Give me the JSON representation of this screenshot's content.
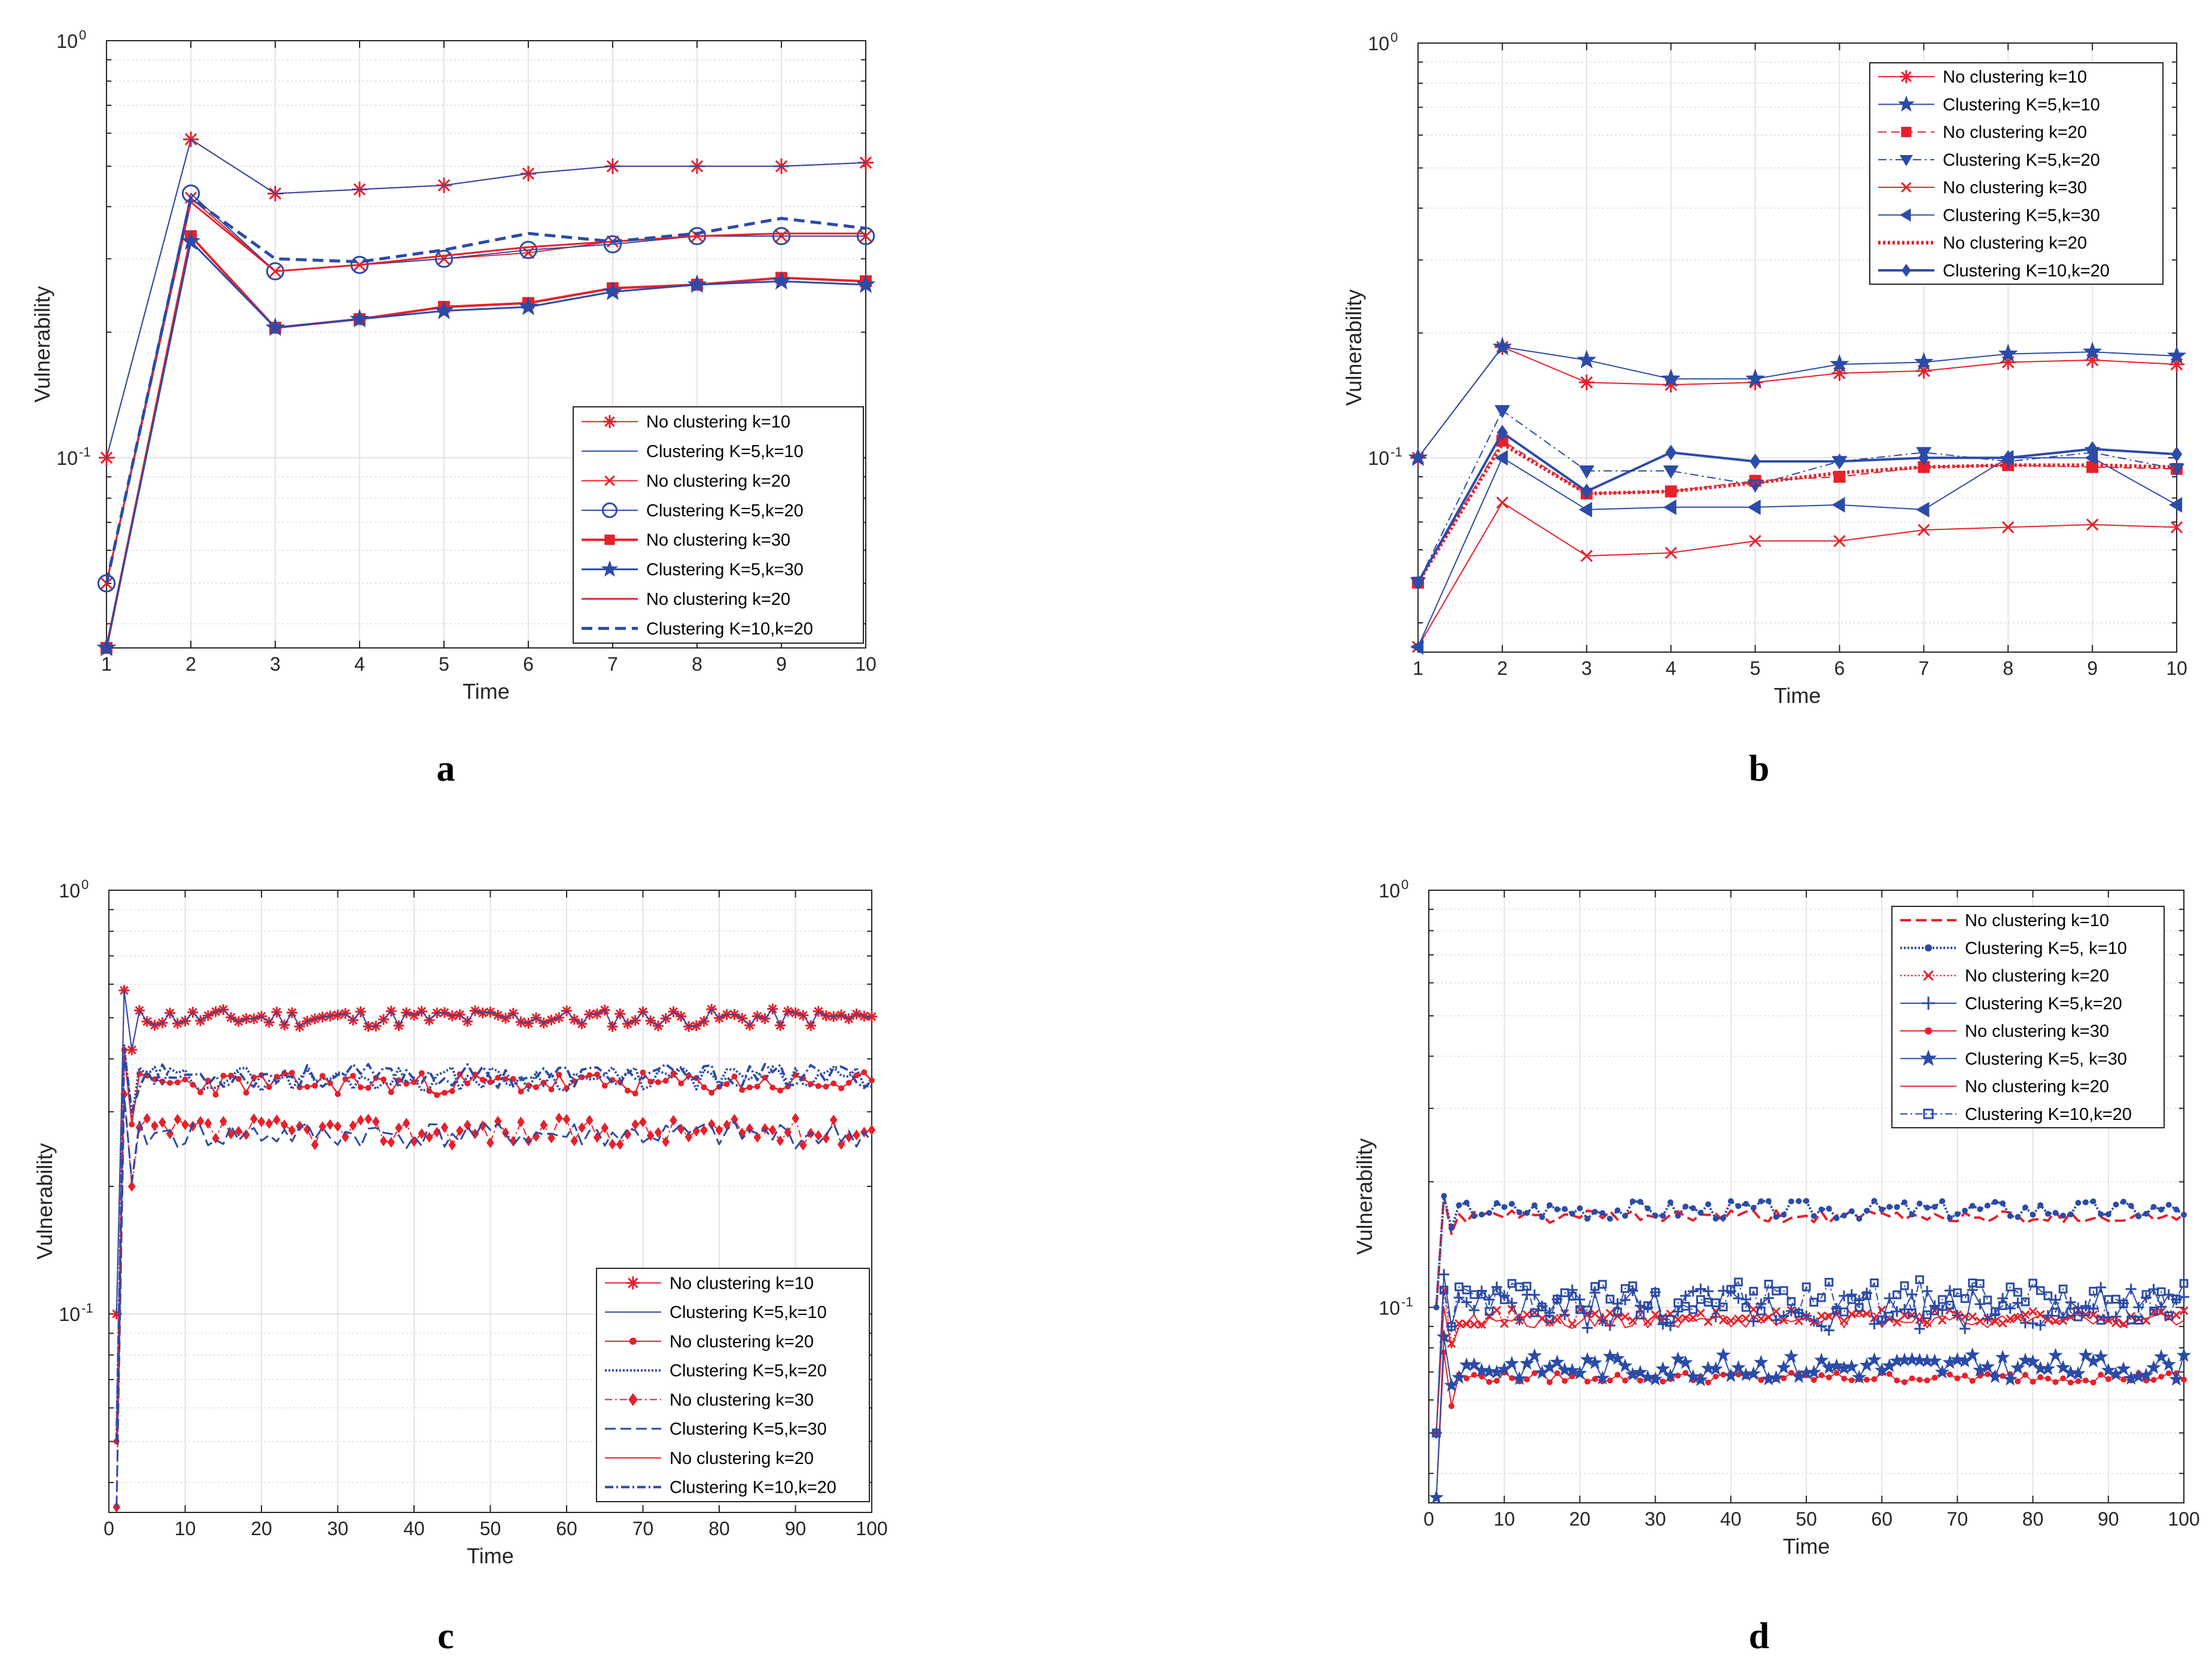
{
  "figure": {
    "panels": [
      "a",
      "b",
      "c",
      "d"
    ]
  },
  "colors": {
    "red": "#e8202a",
    "blue": "#2b4ba8",
    "grid": "#dcdcdc",
    "axis": "#262626"
  },
  "chart_data": [
    {
      "id": "a",
      "label": "a",
      "type": "line",
      "xlabel": "Time",
      "ylabel": "Vulnerability",
      "yscale": "log",
      "ylim": [
        0.035,
        1
      ],
      "xlim": [
        1,
        10
      ],
      "xticks": [
        "1",
        "2",
        "3",
        "4",
        "5",
        "6",
        "7",
        "8",
        "9",
        "10"
      ],
      "ytick_major": [
        {
          "base": "10",
          "exp": "0"
        },
        {
          "base": "10",
          "exp": "-1"
        }
      ],
      "grid": true,
      "legend_position": "bottom-right",
      "x": [
        1,
        2,
        3,
        4,
        5,
        6,
        7,
        8,
        9,
        10
      ],
      "series": [
        {
          "name": "No clustering k=10",
          "color": "#e8202a",
          "dash": "",
          "width": 2,
          "marker": "asterisk",
          "values": [
            0.1,
            0.58,
            0.43,
            0.44,
            0.45,
            0.48,
            0.5,
            0.5,
            0.5,
            0.51
          ]
        },
        {
          "name": "Clustering K=5,k=10",
          "color": "#2b4ba8",
          "dash": "",
          "width": 2,
          "marker": "none",
          "values": [
            0.1,
            0.58,
            0.43,
            0.44,
            0.45,
            0.48,
            0.5,
            0.5,
            0.5,
            0.51
          ]
        },
        {
          "name": "No clustering k=20",
          "color": "#e8202a",
          "dash": "",
          "width": 2,
          "marker": "x",
          "values": [
            0.05,
            0.42,
            0.28,
            0.29,
            0.3,
            0.31,
            0.33,
            0.34,
            0.34,
            0.34
          ]
        },
        {
          "name": "Clustering K=5,k=20",
          "color": "#2b4ba8",
          "dash": "",
          "width": 2,
          "marker": "circle",
          "values": [
            0.05,
            0.43,
            0.28,
            0.29,
            0.3,
            0.315,
            0.325,
            0.34,
            0.34,
            0.34
          ]
        },
        {
          "name": "No clustering k=30",
          "color": "#e8202a",
          "dash": "",
          "width": 4,
          "marker": "square",
          "values": [
            0.035,
            0.34,
            0.205,
            0.215,
            0.23,
            0.235,
            0.255,
            0.26,
            0.27,
            0.265
          ]
        },
        {
          "name": "Clustering K=5,k=30",
          "color": "#2b4ba8",
          "dash": "",
          "width": 3,
          "marker": "star",
          "values": [
            0.035,
            0.33,
            0.205,
            0.215,
            0.225,
            0.23,
            0.25,
            0.26,
            0.265,
            0.26
          ]
        },
        {
          "name": "No clustering k=20",
          "color": "#e8202a",
          "dash": "",
          "width": 3,
          "marker": "none",
          "values": [
            0.05,
            0.41,
            0.28,
            0.29,
            0.305,
            0.32,
            0.33,
            0.34,
            0.345,
            0.345
          ]
        },
        {
          "name": "Clustering K=10,k=20",
          "color": "#2b4ba8",
          "dash": "18 10",
          "width": 5,
          "marker": "none",
          "values": [
            0.05,
            0.42,
            0.3,
            0.295,
            0.315,
            0.345,
            0.33,
            0.345,
            0.375,
            0.355
          ]
        }
      ]
    },
    {
      "id": "b",
      "label": "b",
      "type": "line",
      "xlabel": "Time",
      "ylabel": "Vulnerability",
      "yscale": "log",
      "ylim": [
        0.034,
        1
      ],
      "xlim": [
        1,
        10
      ],
      "xticks": [
        "1",
        "2",
        "3",
        "4",
        "5",
        "6",
        "7",
        "8",
        "9",
        "10"
      ],
      "ytick_major": [
        {
          "base": "10",
          "exp": "0"
        },
        {
          "base": "10",
          "exp": "-1"
        }
      ],
      "grid": true,
      "legend_position": "top-right",
      "x": [
        1,
        2,
        3,
        4,
        5,
        6,
        7,
        8,
        9,
        10
      ],
      "series": [
        {
          "name": "No clustering k=10",
          "color": "#e8202a",
          "dash": "",
          "width": 2,
          "marker": "asterisk",
          "values": [
            0.1,
            0.185,
            0.152,
            0.15,
            0.152,
            0.16,
            0.162,
            0.17,
            0.172,
            0.168
          ]
        },
        {
          "name": "Clustering K=5,k=10",
          "color": "#2b4ba8",
          "dash": "",
          "width": 2,
          "marker": "star",
          "values": [
            0.1,
            0.185,
            0.172,
            0.155,
            0.155,
            0.168,
            0.17,
            0.178,
            0.18,
            0.176
          ]
        },
        {
          "name": "No clustering k=20",
          "color": "#e8202a",
          "dash": "14 8",
          "width": 2,
          "marker": "square",
          "values": [
            0.05,
            0.11,
            0.082,
            0.083,
            0.088,
            0.09,
            0.095,
            0.096,
            0.095,
            0.094
          ]
        },
        {
          "name": "Clustering K=5,k=20",
          "color": "#2b4ba8",
          "dash": "14 6 3 6",
          "width": 2,
          "marker": "triangle-down",
          "values": [
            0.05,
            0.13,
            0.093,
            0.093,
            0.086,
            0.098,
            0.103,
            0.098,
            0.103,
            0.094
          ]
        },
        {
          "name": "No clustering k=30",
          "color": "#e8202a",
          "dash": "",
          "width": 2,
          "marker": "x",
          "values": [
            0.035,
            0.078,
            0.058,
            0.059,
            0.063,
            0.063,
            0.067,
            0.068,
            0.069,
            0.068
          ]
        },
        {
          "name": "Clustering K=5,k=30",
          "color": "#2b4ba8",
          "dash": "",
          "width": 2,
          "marker": "triangle-left",
          "values": [
            0.035,
            0.1,
            0.075,
            0.076,
            0.076,
            0.077,
            0.075,
            0.1,
            0.1,
            0.077
          ]
        },
        {
          "name": "No clustering k=20",
          "color": "#e8202a",
          "dash": "4 4",
          "width": 6,
          "marker": "none",
          "values": [
            0.05,
            0.108,
            0.082,
            0.083,
            0.087,
            0.092,
            0.095,
            0.096,
            0.096,
            0.095
          ]
        },
        {
          "name": "Clustering K=10,k=20",
          "color": "#2b4ba8",
          "dash": "",
          "width": 4,
          "marker": "diamond",
          "values": [
            0.05,
            0.115,
            0.083,
            0.103,
            0.098,
            0.098,
            0.1,
            0.1,
            0.105,
            0.102
          ]
        }
      ]
    },
    {
      "id": "c",
      "label": "c",
      "type": "line",
      "xlabel": "Time",
      "ylabel": "Vulnerability",
      "yscale": "log",
      "ylim": [
        0.034,
        1
      ],
      "xlim": [
        0,
        100
      ],
      "xticks": [
        "0",
        "10",
        "20",
        "30",
        "40",
        "50",
        "60",
        "70",
        "80",
        "90",
        "100"
      ],
      "ytick_major": [
        {
          "base": "10",
          "exp": "0"
        },
        {
          "base": "10",
          "exp": "-1"
        }
      ],
      "grid": true,
      "legend_position": "bottom-right",
      "series_generation": "Time steps 1-100; each series is a start value followed by noisy values around its plateau level",
      "series": [
        {
          "name": "No clustering k=10",
          "color": "#e8202a",
          "dash": "",
          "width": 2,
          "marker": "asterisk",
          "start": [
            0.1,
            0.58,
            0.42
          ],
          "level": 0.5,
          "noise": 0.025,
          "seed": 11
        },
        {
          "name": "Clustering K=5,k=10",
          "color": "#2b4ba8",
          "dash": "",
          "width": 2,
          "marker": "none",
          "start": [
            0.1,
            0.58,
            0.42
          ],
          "level": 0.5,
          "noise": 0.025,
          "seed": 11
        },
        {
          "name": "No clustering k=20",
          "color": "#e8202a",
          "dash": "",
          "width": 2,
          "marker": "dot",
          "start": [
            0.05,
            0.42,
            0.28
          ],
          "level": 0.35,
          "noise": 0.022,
          "seed": 23
        },
        {
          "name": "Clustering K=5,k=20",
          "color": "#2b4ba8",
          "dash": "3 3",
          "width": 4,
          "marker": "none",
          "start": [
            0.05,
            0.43,
            0.29
          ],
          "level": 0.36,
          "noise": 0.024,
          "seed": 29
        },
        {
          "name": "No clustering k=30",
          "color": "#e8202a",
          "dash": "12 5 3 5",
          "width": 2,
          "marker": "diamond",
          "start": [
            0.035,
            0.33,
            0.2
          ],
          "level": 0.27,
          "noise": 0.02,
          "seed": 37
        },
        {
          "name": "Clustering K=5,k=30",
          "color": "#2b4ba8",
          "dash": "18 8",
          "width": 3,
          "marker": "none",
          "start": [
            0.035,
            0.33,
            0.205
          ],
          "level": 0.265,
          "noise": 0.02,
          "seed": 41
        },
        {
          "name": "No clustering k=20",
          "color": "#e8202a",
          "dash": "",
          "width": 2,
          "marker": "none",
          "start": [
            0.05,
            0.41,
            0.28
          ],
          "level": 0.35,
          "noise": 0.02,
          "seed": 23
        },
        {
          "name": "Clustering K=10,k=20",
          "color": "#2b4ba8",
          "dash": "14 5 3 5",
          "width": 4,
          "marker": "none",
          "start": [
            0.05,
            0.42,
            0.3
          ],
          "level": 0.365,
          "noise": 0.024,
          "seed": 53
        }
      ]
    },
    {
      "id": "d",
      "label": "d",
      "type": "line",
      "xlabel": "Time",
      "ylabel": "Vulnerability",
      "yscale": "log",
      "ylim": [
        0.034,
        1
      ],
      "xlim": [
        0,
        100
      ],
      "xticks": [
        "0",
        "10",
        "20",
        "30",
        "40",
        "50",
        "60",
        "70",
        "80",
        "90",
        "100"
      ],
      "ytick_major": [
        {
          "base": "10",
          "exp": "0"
        },
        {
          "base": "10",
          "exp": "-1"
        }
      ],
      "grid": true,
      "legend_position": "top-right",
      "series_generation": "Time steps 1-100; each series is a start value followed by noisy values around its plateau level",
      "series": [
        {
          "name": "No clustering k=10",
          "color": "#e8202a",
          "dash": "18 8",
          "width": 4,
          "marker": "none",
          "start": [
            0.1,
            0.185,
            0.15
          ],
          "level": 0.165,
          "noise": 0.006,
          "seed": 61
        },
        {
          "name": "Clustering K=5, k=10",
          "color": "#2b4ba8",
          "dash": "3 3",
          "width": 4,
          "marker": "dot",
          "start": [
            0.1,
            0.185,
            0.155
          ],
          "level": 0.172,
          "noise": 0.009,
          "seed": 67
        },
        {
          "name": "No clustering k=20",
          "color": "#e8202a",
          "dash": "3 3",
          "width": 2,
          "marker": "x",
          "start": [
            0.05,
            0.11,
            0.082
          ],
          "level": 0.095,
          "noise": 0.004,
          "seed": 71
        },
        {
          "name": "Clustering K=5,k=20",
          "color": "#2b4ba8",
          "dash": "",
          "width": 2,
          "marker": "plus",
          "start": [
            0.05,
            0.12,
            0.09
          ],
          "level": 0.1,
          "noise": 0.012,
          "seed": 73
        },
        {
          "name": "No clustering k=30",
          "color": "#e8202a",
          "dash": "",
          "width": 2,
          "marker": "dot",
          "start": [
            0.035,
            0.078,
            0.058
          ],
          "level": 0.068,
          "noise": 0.002,
          "seed": 79
        },
        {
          "name": "Clustering K=5, k=30",
          "color": "#2b4ba8",
          "dash": "",
          "width": 2,
          "marker": "star",
          "start": [
            0.035,
            0.085,
            0.065
          ],
          "level": 0.072,
          "noise": 0.005,
          "seed": 83
        },
        {
          "name": "No clustering k=20",
          "color": "#e8202a",
          "dash": "",
          "width": 2,
          "marker": "none",
          "start": [
            0.05,
            0.1,
            0.08
          ],
          "level": 0.093,
          "noise": 0.004,
          "seed": 89
        },
        {
          "name": "Clustering K=10,k=20",
          "color": "#2b4ba8",
          "dash": "12 5 3 5",
          "width": 2,
          "marker": "square",
          "start": [
            0.05,
            0.11,
            0.09
          ],
          "level": 0.105,
          "noise": 0.012,
          "seed": 97
        }
      ]
    }
  ]
}
